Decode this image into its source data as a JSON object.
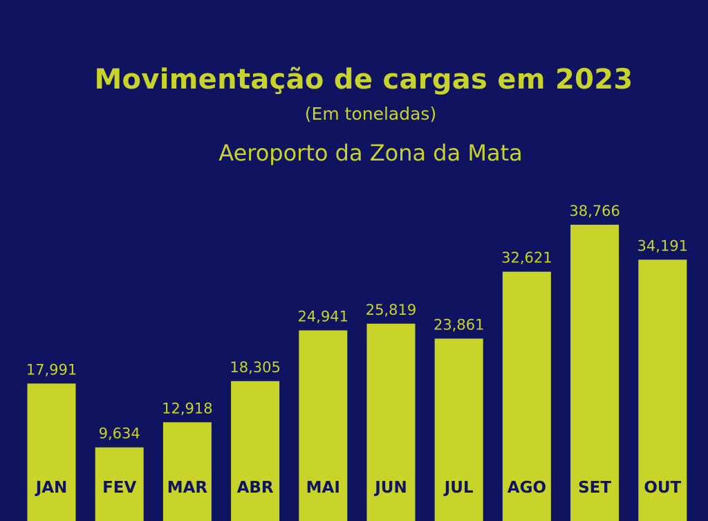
{
  "chart_data": {
    "type": "bar",
    "title": "Movimentação de cargas em 2023",
    "subtitle": "(Em toneladas)",
    "caption": "Aeroporto da Zona da Mata",
    "categories": [
      "JAN",
      "FEV",
      "MAR",
      "ABR",
      "MAI",
      "JUN",
      "JUL",
      "AGO",
      "SET",
      "OUT"
    ],
    "values": [
      17991,
      9634,
      12918,
      18305,
      24941,
      25819,
      23861,
      32621,
      38766,
      34191
    ],
    "value_labels": [
      "17,991",
      "9,634",
      "12,918",
      "18,305",
      "24,941",
      "25,819",
      "23,861",
      "32,621",
      "38,766",
      "34,191"
    ],
    "xlabel": "",
    "ylabel": "",
    "grid": false,
    "legend": "none"
  },
  "colors": {
    "background": "#101460",
    "bar": "#c8d42a",
    "text": "#c8d42a",
    "category_text": "#101460"
  }
}
